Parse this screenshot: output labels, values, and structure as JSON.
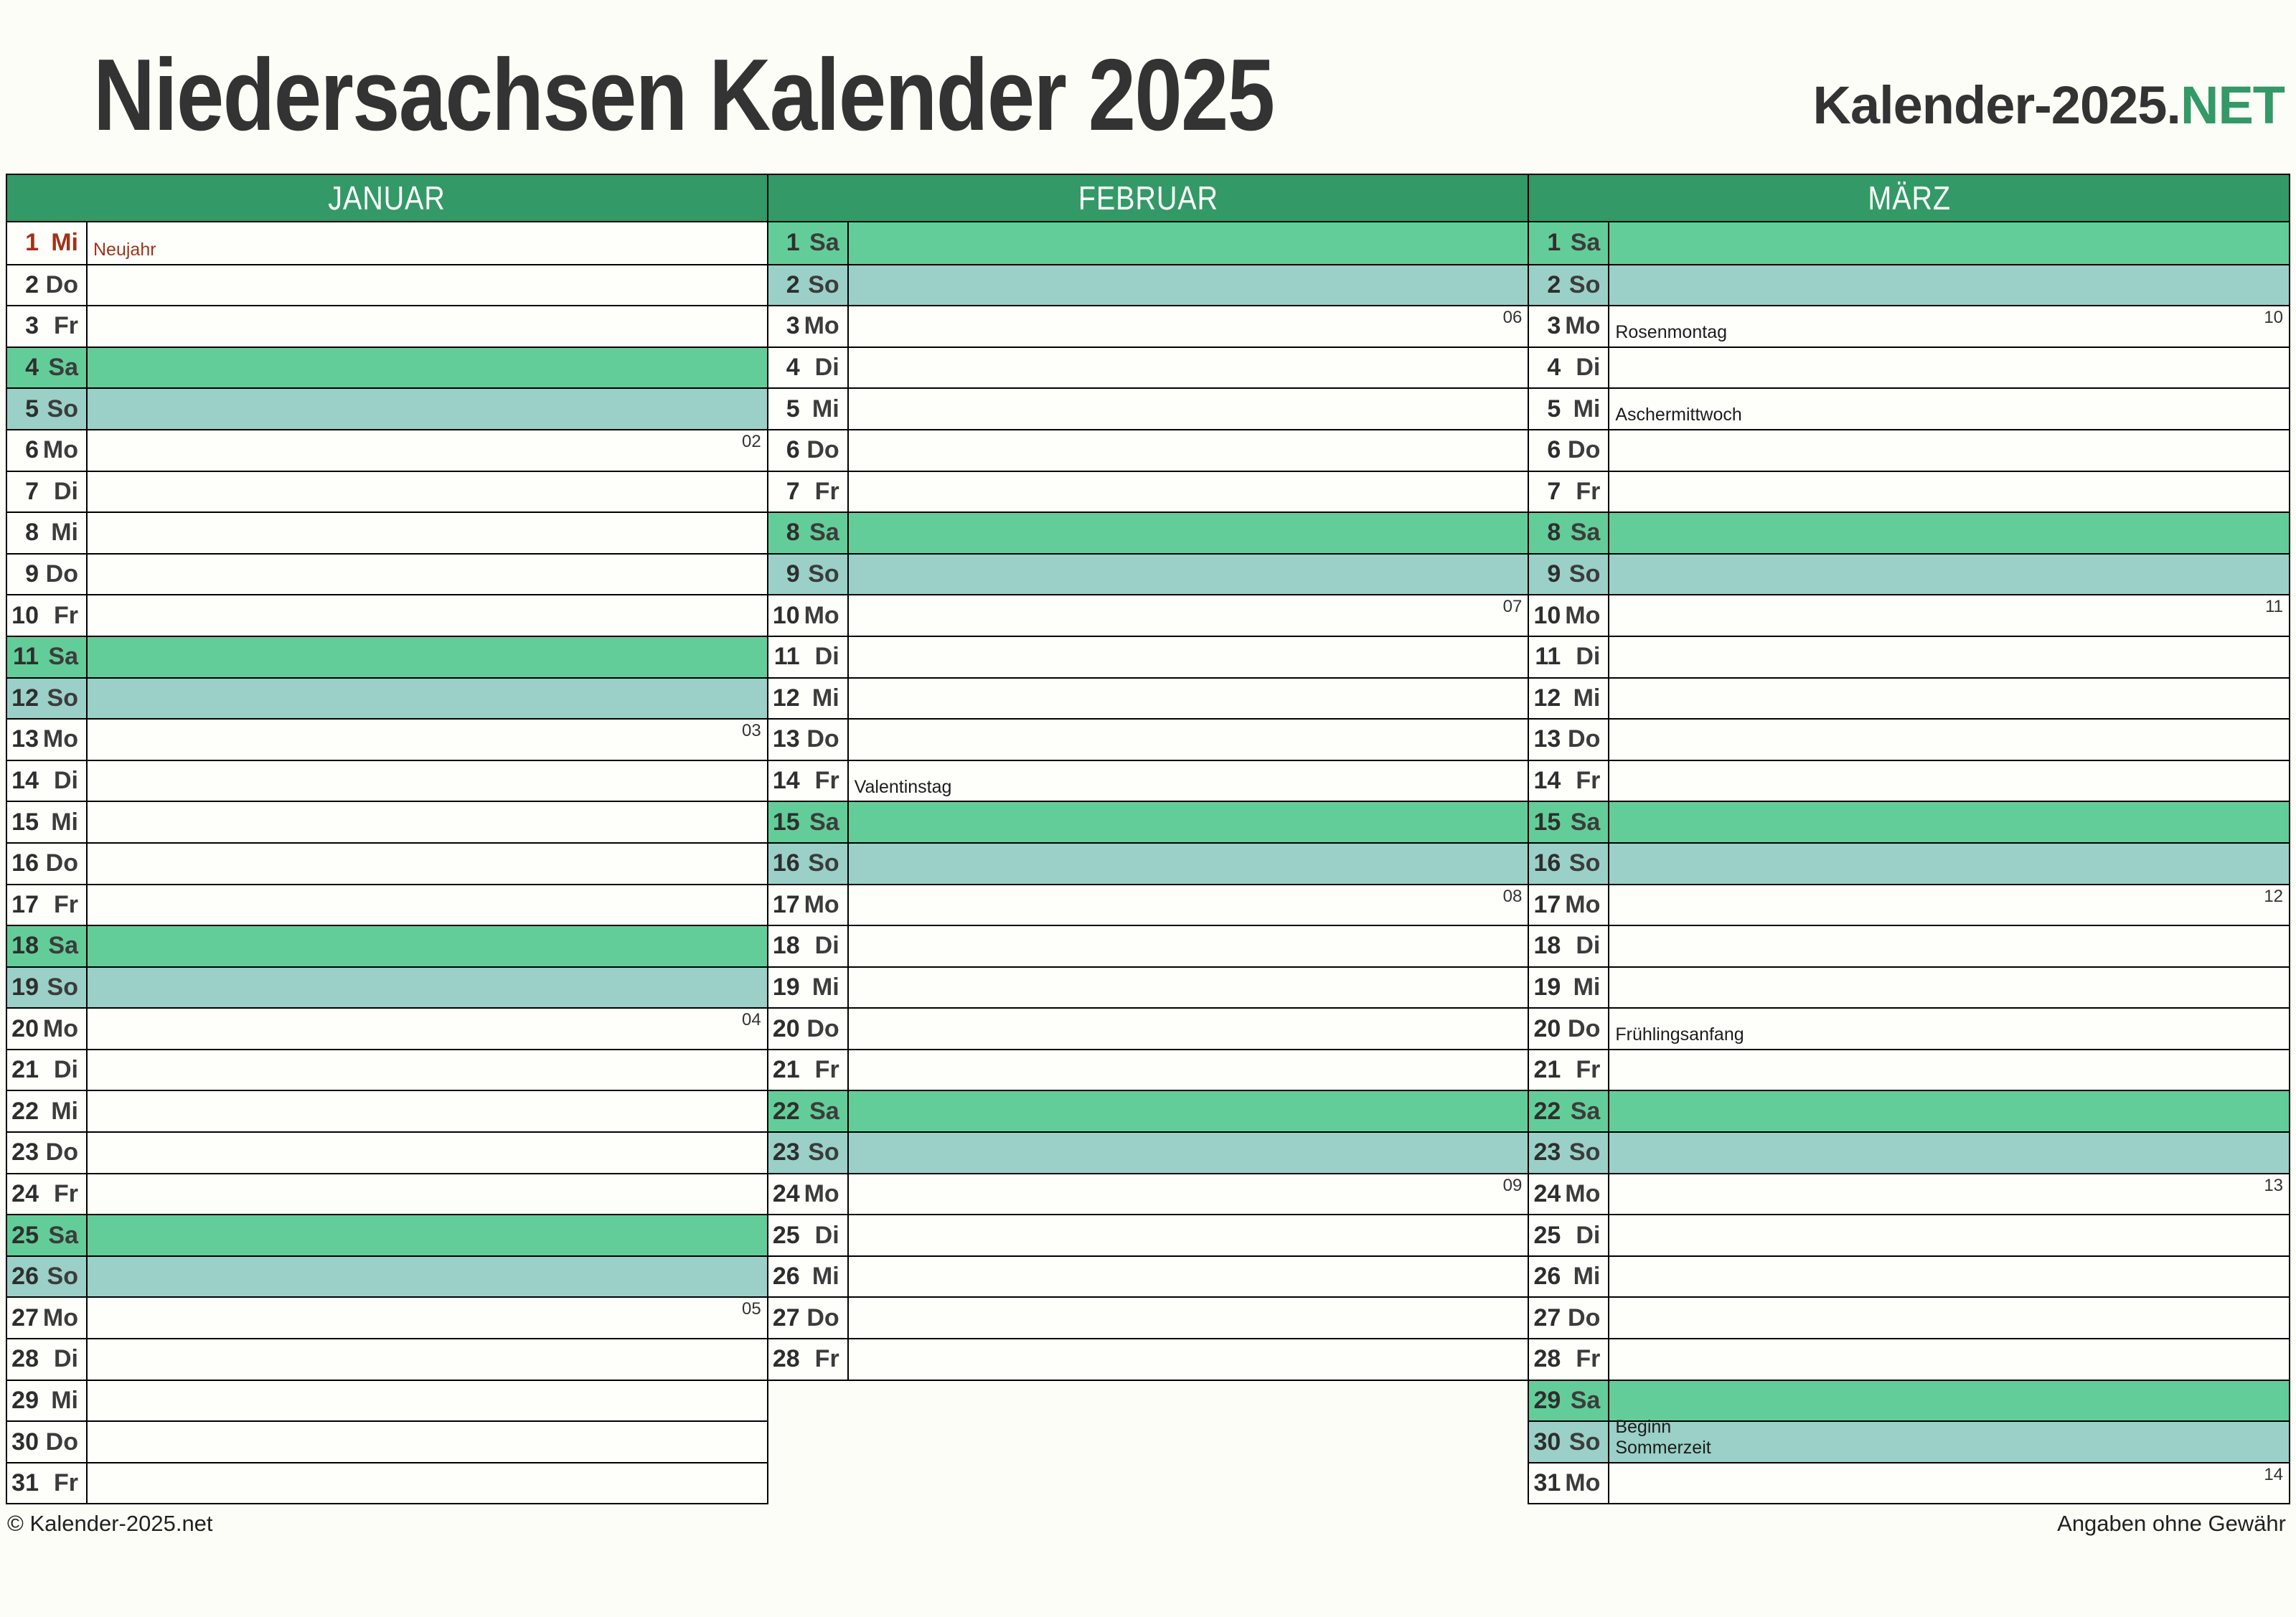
{
  "header": {
    "title": "Niedersachsen Kalender 2025",
    "logo_prefix": "Kalender-2025.",
    "logo_suffix": "NET"
  },
  "footer": {
    "left": "© Kalender-2025.net",
    "right": "Angaben ohne Gewähr"
  },
  "colors": {
    "page_bg": "#FBFDF6",
    "header_green": "#339966",
    "saturday_green": "#63CD99",
    "sunday_teal": "#9AD0C8",
    "holiday_red": "#9E331B",
    "accent": "#339966"
  },
  "months": [
    {
      "name": "JANUAR",
      "days": [
        {
          "n": 1,
          "w": "Mi",
          "hl": "hol",
          "note": "Neujahr"
        },
        {
          "n": 2,
          "w": "Do"
        },
        {
          "n": 3,
          "w": "Fr"
        },
        {
          "n": 4,
          "w": "Sa",
          "hl": "sat"
        },
        {
          "n": 5,
          "w": "So",
          "hl": "sun"
        },
        {
          "n": 6,
          "w": "Mo",
          "wk": "02"
        },
        {
          "n": 7,
          "w": "Di"
        },
        {
          "n": 8,
          "w": "Mi"
        },
        {
          "n": 9,
          "w": "Do"
        },
        {
          "n": 10,
          "w": "Fr"
        },
        {
          "n": 11,
          "w": "Sa",
          "hl": "sat"
        },
        {
          "n": 12,
          "w": "So",
          "hl": "sun"
        },
        {
          "n": 13,
          "w": "Mo",
          "wk": "03"
        },
        {
          "n": 14,
          "w": "Di"
        },
        {
          "n": 15,
          "w": "Mi"
        },
        {
          "n": 16,
          "w": "Do"
        },
        {
          "n": 17,
          "w": "Fr"
        },
        {
          "n": 18,
          "w": "Sa",
          "hl": "sat"
        },
        {
          "n": 19,
          "w": "So",
          "hl": "sun"
        },
        {
          "n": 20,
          "w": "Mo",
          "wk": "04"
        },
        {
          "n": 21,
          "w": "Di"
        },
        {
          "n": 22,
          "w": "Mi"
        },
        {
          "n": 23,
          "w": "Do"
        },
        {
          "n": 24,
          "w": "Fr"
        },
        {
          "n": 25,
          "w": "Sa",
          "hl": "sat"
        },
        {
          "n": 26,
          "w": "So",
          "hl": "sun"
        },
        {
          "n": 27,
          "w": "Mo",
          "wk": "05"
        },
        {
          "n": 28,
          "w": "Di"
        },
        {
          "n": 29,
          "w": "Mi"
        },
        {
          "n": 30,
          "w": "Do"
        },
        {
          "n": 31,
          "w": "Fr"
        }
      ]
    },
    {
      "name": "FEBRUAR",
      "days": [
        {
          "n": 1,
          "w": "Sa",
          "hl": "sat"
        },
        {
          "n": 2,
          "w": "So",
          "hl": "sun"
        },
        {
          "n": 3,
          "w": "Mo",
          "wk": "06"
        },
        {
          "n": 4,
          "w": "Di"
        },
        {
          "n": 5,
          "w": "Mi"
        },
        {
          "n": 6,
          "w": "Do"
        },
        {
          "n": 7,
          "w": "Fr"
        },
        {
          "n": 8,
          "w": "Sa",
          "hl": "sat"
        },
        {
          "n": 9,
          "w": "So",
          "hl": "sun"
        },
        {
          "n": 10,
          "w": "Mo",
          "wk": "07"
        },
        {
          "n": 11,
          "w": "Di"
        },
        {
          "n": 12,
          "w": "Mi"
        },
        {
          "n": 13,
          "w": "Do"
        },
        {
          "n": 14,
          "w": "Fr",
          "note": "Valentinstag"
        },
        {
          "n": 15,
          "w": "Sa",
          "hl": "sat"
        },
        {
          "n": 16,
          "w": "So",
          "hl": "sun"
        },
        {
          "n": 17,
          "w": "Mo",
          "wk": "08"
        },
        {
          "n": 18,
          "w": "Di"
        },
        {
          "n": 19,
          "w": "Mi"
        },
        {
          "n": 20,
          "w": "Do"
        },
        {
          "n": 21,
          "w": "Fr"
        },
        {
          "n": 22,
          "w": "Sa",
          "hl": "sat"
        },
        {
          "n": 23,
          "w": "So",
          "hl": "sun"
        },
        {
          "n": 24,
          "w": "Mo",
          "wk": "09"
        },
        {
          "n": 25,
          "w": "Di"
        },
        {
          "n": 26,
          "w": "Mi"
        },
        {
          "n": 27,
          "w": "Do"
        },
        {
          "n": 28,
          "w": "Fr"
        }
      ]
    },
    {
      "name": "MÄRZ",
      "days": [
        {
          "n": 1,
          "w": "Sa",
          "hl": "sat"
        },
        {
          "n": 2,
          "w": "So",
          "hl": "sun"
        },
        {
          "n": 3,
          "w": "Mo",
          "wk": "10",
          "note": "Rosenmontag"
        },
        {
          "n": 4,
          "w": "Di"
        },
        {
          "n": 5,
          "w": "Mi",
          "note": "Aschermittwoch"
        },
        {
          "n": 6,
          "w": "Do"
        },
        {
          "n": 7,
          "w": "Fr"
        },
        {
          "n": 8,
          "w": "Sa",
          "hl": "sat"
        },
        {
          "n": 9,
          "w": "So",
          "hl": "sun"
        },
        {
          "n": 10,
          "w": "Mo",
          "wk": "11"
        },
        {
          "n": 11,
          "w": "Di"
        },
        {
          "n": 12,
          "w": "Mi"
        },
        {
          "n": 13,
          "w": "Do"
        },
        {
          "n": 14,
          "w": "Fr"
        },
        {
          "n": 15,
          "w": "Sa",
          "hl": "sat"
        },
        {
          "n": 16,
          "w": "So",
          "hl": "sun"
        },
        {
          "n": 17,
          "w": "Mo",
          "wk": "12"
        },
        {
          "n": 18,
          "w": "Di"
        },
        {
          "n": 19,
          "w": "Mi"
        },
        {
          "n": 20,
          "w": "Do",
          "note": "Frühlingsanfang"
        },
        {
          "n": 21,
          "w": "Fr"
        },
        {
          "n": 22,
          "w": "Sa",
          "hl": "sat"
        },
        {
          "n": 23,
          "w": "So",
          "hl": "sun"
        },
        {
          "n": 24,
          "w": "Mo",
          "wk": "13"
        },
        {
          "n": 25,
          "w": "Di"
        },
        {
          "n": 26,
          "w": "Mi"
        },
        {
          "n": 27,
          "w": "Do"
        },
        {
          "n": 28,
          "w": "Fr"
        },
        {
          "n": 29,
          "w": "Sa",
          "hl": "sat"
        },
        {
          "n": 30,
          "w": "So",
          "hl": "sun",
          "note": "Beginn\nSommerzeit"
        },
        {
          "n": 31,
          "w": "Mo",
          "wk": "14"
        }
      ]
    }
  ]
}
